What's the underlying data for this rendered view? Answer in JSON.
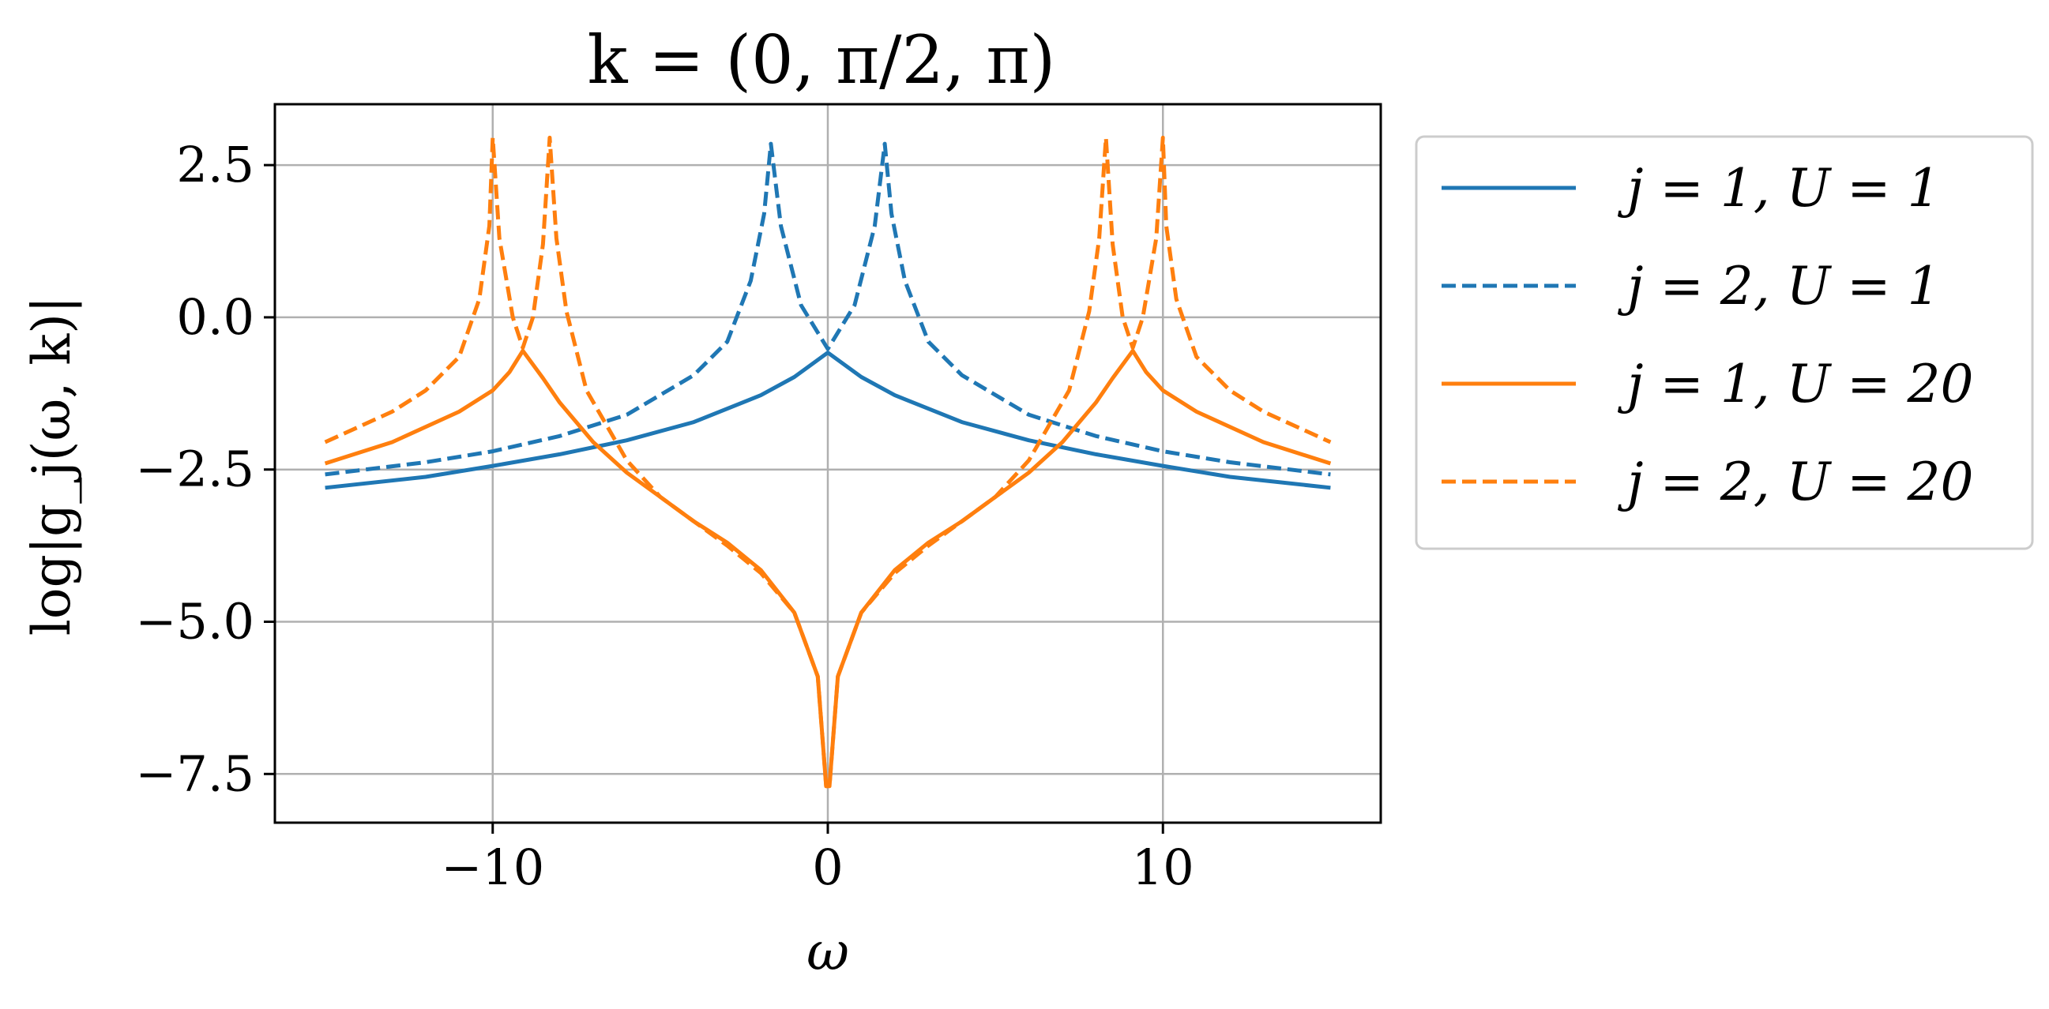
{
  "chart_data": {
    "type": "line",
    "title": "k = (0, π/2, π)",
    "xlabel": "ω",
    "ylabel": "log|g_j(ω, k)|",
    "xlim": [
      -16.5,
      16.5
    ],
    "ylim": [
      -8.3,
      3.5
    ],
    "xticks": [
      {
        "value": -10,
        "label": "−10"
      },
      {
        "value": 0,
        "label": "0"
      },
      {
        "value": 10,
        "label": "10"
      }
    ],
    "yticks": [
      {
        "value": 2.5,
        "label": "2.5"
      },
      {
        "value": 0.0,
        "label": "0.0"
      },
      {
        "value": -2.5,
        "label": "−2.5"
      },
      {
        "value": -5.0,
        "label": "−5.0"
      },
      {
        "value": -7.5,
        "label": "−7.5"
      }
    ],
    "grid": true,
    "legend_position": "outside-right",
    "series": [
      {
        "name": "j = 1, U = 1",
        "color": "#1f77b4",
        "dash": "solid",
        "points": [
          [
            -15,
            -2.8
          ],
          [
            -12,
            -2.62
          ],
          [
            -10,
            -2.44
          ],
          [
            -8,
            -2.25
          ],
          [
            -6,
            -2.02
          ],
          [
            -4,
            -1.72
          ],
          [
            -2,
            -1.28
          ],
          [
            -1,
            -0.98
          ],
          [
            0,
            -0.58
          ],
          [
            1,
            -0.98
          ],
          [
            2,
            -1.28
          ],
          [
            4,
            -1.72
          ],
          [
            6,
            -2.02
          ],
          [
            8,
            -2.25
          ],
          [
            10,
            -2.44
          ],
          [
            12,
            -2.62
          ],
          [
            15,
            -2.8
          ]
        ]
      },
      {
        "name": "j = 2, U = 1",
        "color": "#1f77b4",
        "dash": "dashed",
        "points": [
          [
            -15,
            -2.58
          ],
          [
            -12,
            -2.38
          ],
          [
            -10,
            -2.2
          ],
          [
            -8,
            -1.95
          ],
          [
            -6,
            -1.6
          ],
          [
            -4,
            -0.95
          ],
          [
            -3,
            -0.4
          ],
          [
            -2.3,
            0.6
          ],
          [
            -1.9,
            1.7
          ],
          [
            -1.7,
            2.85
          ],
          [
            -1.4,
            1.5
          ],
          [
            -0.8,
            0.2
          ],
          [
            0,
            -0.52
          ],
          [
            0.8,
            0.2
          ],
          [
            1.4,
            1.5
          ],
          [
            1.7,
            2.85
          ],
          [
            1.9,
            1.7
          ],
          [
            2.3,
            0.6
          ],
          [
            3,
            -0.4
          ],
          [
            4,
            -0.95
          ],
          [
            6,
            -1.6
          ],
          [
            8,
            -1.95
          ],
          [
            10,
            -2.2
          ],
          [
            12,
            -2.38
          ],
          [
            15,
            -2.58
          ]
        ]
      },
      {
        "name": "j = 1, U = 20",
        "color": "#ff7f0e",
        "dash": "solid",
        "points": [
          [
            -15,
            -2.4
          ],
          [
            -13,
            -2.05
          ],
          [
            -11,
            -1.55
          ],
          [
            -10,
            -1.2
          ],
          [
            -9.5,
            -0.9
          ],
          [
            -9.1,
            -0.55
          ],
          [
            -8.5,
            -1.0
          ],
          [
            -8,
            -1.4
          ],
          [
            -7,
            -2.05
          ],
          [
            -6,
            -2.55
          ],
          [
            -5,
            -2.95
          ],
          [
            -4,
            -3.35
          ],
          [
            -3,
            -3.7
          ],
          [
            -2,
            -4.15
          ],
          [
            -1,
            -4.85
          ],
          [
            -0.3,
            -5.9
          ],
          [
            -0.05,
            -7.7
          ],
          [
            0.05,
            -7.7
          ],
          [
            0.3,
            -5.9
          ],
          [
            1,
            -4.85
          ],
          [
            2,
            -4.15
          ],
          [
            3,
            -3.7
          ],
          [
            4,
            -3.35
          ],
          [
            5,
            -2.95
          ],
          [
            6,
            -2.55
          ],
          [
            7,
            -2.05
          ],
          [
            8,
            -1.4
          ],
          [
            8.5,
            -1.0
          ],
          [
            9.1,
            -0.55
          ],
          [
            9.5,
            -0.9
          ],
          [
            10,
            -1.2
          ],
          [
            11,
            -1.55
          ],
          [
            13,
            -2.05
          ],
          [
            15,
            -2.4
          ]
        ]
      },
      {
        "name": "j = 2, U = 20",
        "color": "#ff7f0e",
        "dash": "dashed",
        "points": [
          [
            -15,
            -2.05
          ],
          [
            -13,
            -1.55
          ],
          [
            -12,
            -1.2
          ],
          [
            -11,
            -0.65
          ],
          [
            -10.4,
            0.3
          ],
          [
            -10.1,
            1.5
          ],
          [
            -10,
            2.95
          ],
          [
            -9.8,
            1.3
          ],
          [
            -9.4,
            0.0
          ],
          [
            -9.1,
            -0.5
          ],
          [
            -8.8,
            0.0
          ],
          [
            -8.5,
            1.2
          ],
          [
            -8.3,
            2.95
          ],
          [
            -8.1,
            1.3
          ],
          [
            -7.8,
            0.1
          ],
          [
            -7.2,
            -1.2
          ],
          [
            -6,
            -2.35
          ],
          [
            -5,
            -2.95
          ],
          [
            -4,
            -3.35
          ],
          [
            -3,
            -3.75
          ],
          [
            -2,
            -4.2
          ],
          [
            -1,
            -4.85
          ],
          [
            -0.3,
            -5.9
          ],
          [
            -0.05,
            -7.7
          ],
          [
            0.05,
            -7.7
          ],
          [
            0.3,
            -5.9
          ],
          [
            1,
            -4.85
          ],
          [
            2,
            -4.2
          ],
          [
            3,
            -3.75
          ],
          [
            4,
            -3.35
          ],
          [
            5,
            -2.95
          ],
          [
            6,
            -2.35
          ],
          [
            7.2,
            -1.2
          ],
          [
            7.8,
            0.1
          ],
          [
            8.1,
            1.3
          ],
          [
            8.3,
            2.95
          ],
          [
            8.5,
            1.2
          ],
          [
            8.8,
            0.0
          ],
          [
            9.1,
            -0.5
          ],
          [
            9.4,
            0.0
          ],
          [
            9.8,
            1.3
          ],
          [
            10,
            2.95
          ],
          [
            10.1,
            1.5
          ],
          [
            10.4,
            0.3
          ],
          [
            11,
            -0.65
          ],
          [
            12,
            -1.2
          ],
          [
            13,
            -1.55
          ],
          [
            15,
            -2.05
          ]
        ]
      }
    ]
  }
}
